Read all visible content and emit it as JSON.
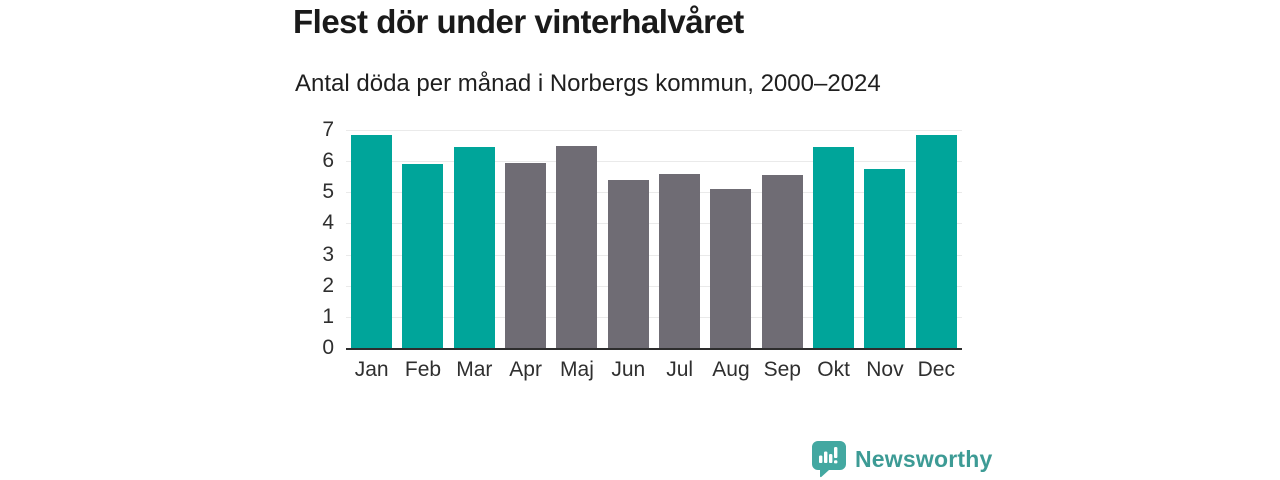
{
  "header": {
    "title": "Flest dör under vinterhalvåret",
    "subtitle": "Antal döda per månad i Norbergs kommun, 2000–2024"
  },
  "chart_data": {
    "type": "bar",
    "categories": [
      "Jan",
      "Feb",
      "Mar",
      "Apr",
      "Maj",
      "Jun",
      "Jul",
      "Aug",
      "Sep",
      "Okt",
      "Nov",
      "Dec"
    ],
    "values": [
      6.85,
      5.9,
      6.45,
      5.95,
      6.5,
      5.4,
      5.6,
      5.1,
      5.55,
      6.45,
      5.75,
      6.85
    ],
    "bar_colors": [
      "#00a59a",
      "#00a59a",
      "#00a59a",
      "#6f6c74",
      "#6f6c74",
      "#6f6c74",
      "#6f6c74",
      "#6f6c74",
      "#6f6c74",
      "#00a59a",
      "#00a59a",
      "#00a59a"
    ],
    "title": "Flest dör under vinterhalvåret",
    "subtitle": "Antal döda per månad i Norbergs kommun, 2000–2024",
    "xlabel": "",
    "ylabel": "",
    "ylim": [
      0,
      7
    ],
    "yticks": [
      0,
      1,
      2,
      3,
      4,
      5,
      6,
      7
    ],
    "grid": true,
    "legend_position": "none"
  },
  "branding": {
    "logo_text": "Newsworthy",
    "logo_icon": "bar-chart-speech-bubble-icon",
    "logo_bubble_color": "#43a8a1",
    "logo_text_color": "#3d9b95"
  },
  "colors": {
    "winter_bar": "#00a59a",
    "summer_bar": "#6f6c74",
    "axis_line": "#2d2d2d",
    "gridline": "#eaeaea",
    "text": "#1a1a1a",
    "tick_text": "#2f2f2f",
    "background": "#ffffff"
  }
}
